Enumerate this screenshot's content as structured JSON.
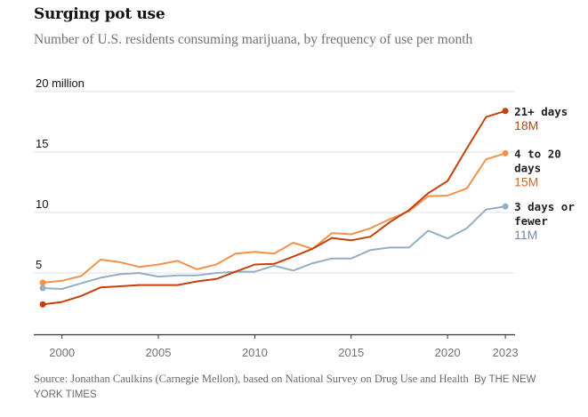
{
  "chart_data": {
    "type": "line",
    "title": "Surging pot use",
    "subtitle": "Number of U.S. residents consuming marijuana, by frequency of use per month",
    "xlabel": "",
    "ylabel": "",
    "x": [
      1999,
      2000,
      2001,
      2002,
      2003,
      2004,
      2005,
      2006,
      2007,
      2008,
      2009,
      2010,
      2011,
      2012,
      2013,
      2014,
      2015,
      2016,
      2017,
      2018,
      2019,
      2020,
      2021,
      2022,
      2023
    ],
    "xlim": [
      1999,
      2023
    ],
    "ylim": [
      0,
      20
    ],
    "x_ticks": [
      {
        "value": 2000,
        "label": "2000"
      },
      {
        "value": 2005,
        "label": "2005"
      },
      {
        "value": 2010,
        "label": "2010"
      },
      {
        "value": 2015,
        "label": "2015"
      },
      {
        "value": 2020,
        "label": "2020"
      },
      {
        "value": 2023,
        "label": "2023"
      }
    ],
    "y_ticks": [
      {
        "value": 5,
        "label": "5"
      },
      {
        "value": 10,
        "label": "10"
      },
      {
        "value": 15,
        "label": "15"
      },
      {
        "value": 20,
        "label": "20 million"
      }
    ],
    "grid": true,
    "legend": "direct labels at right end of lines",
    "units": "million people",
    "series": [
      {
        "name": "21+ days",
        "end_label": "18M",
        "color": "#c5410b",
        "label_color": "#c0440f",
        "values": [
          2.4,
          2.6,
          3.1,
          3.8,
          3.9,
          4.0,
          4.0,
          4.0,
          4.3,
          4.5,
          5.1,
          5.7,
          5.75,
          6.35,
          7.0,
          7.9,
          7.7,
          8.0,
          9.2,
          10.2,
          11.6,
          12.6,
          15.3,
          17.9,
          18.4
        ]
      },
      {
        "name": "4 to 20 days",
        "end_label": "15M",
        "color": "#f4914b",
        "label_color": "#d2691e",
        "values": [
          4.2,
          4.35,
          4.75,
          6.1,
          5.9,
          5.5,
          5.7,
          6.0,
          5.3,
          5.7,
          6.6,
          6.75,
          6.6,
          7.5,
          7.0,
          8.3,
          8.2,
          8.7,
          9.45,
          10.1,
          11.35,
          11.4,
          12.0,
          14.4,
          14.9
        ]
      },
      {
        "name": "3 days or fewer",
        "end_label": "11M",
        "color": "#93afc8",
        "label_color": "#6b8aa6",
        "values": [
          3.75,
          3.68,
          4.15,
          4.6,
          4.9,
          5.0,
          4.7,
          4.8,
          4.8,
          5.0,
          5.1,
          5.1,
          5.6,
          5.2,
          5.8,
          6.2,
          6.2,
          6.9,
          7.1,
          7.1,
          8.5,
          7.85,
          8.7,
          10.25,
          10.5
        ]
      }
    ],
    "label_lines": [
      [
        "21+ days"
      ],
      [
        "4 to 20",
        "days"
      ],
      [
        "3 days or",
        "fewer"
      ]
    ]
  },
  "source": {
    "text": "Source: Jonathan Caulkins (Carnegie Mellon), based on National Survey on Drug Use and Health",
    "credit": "By THE NEW YORK TIMES"
  }
}
